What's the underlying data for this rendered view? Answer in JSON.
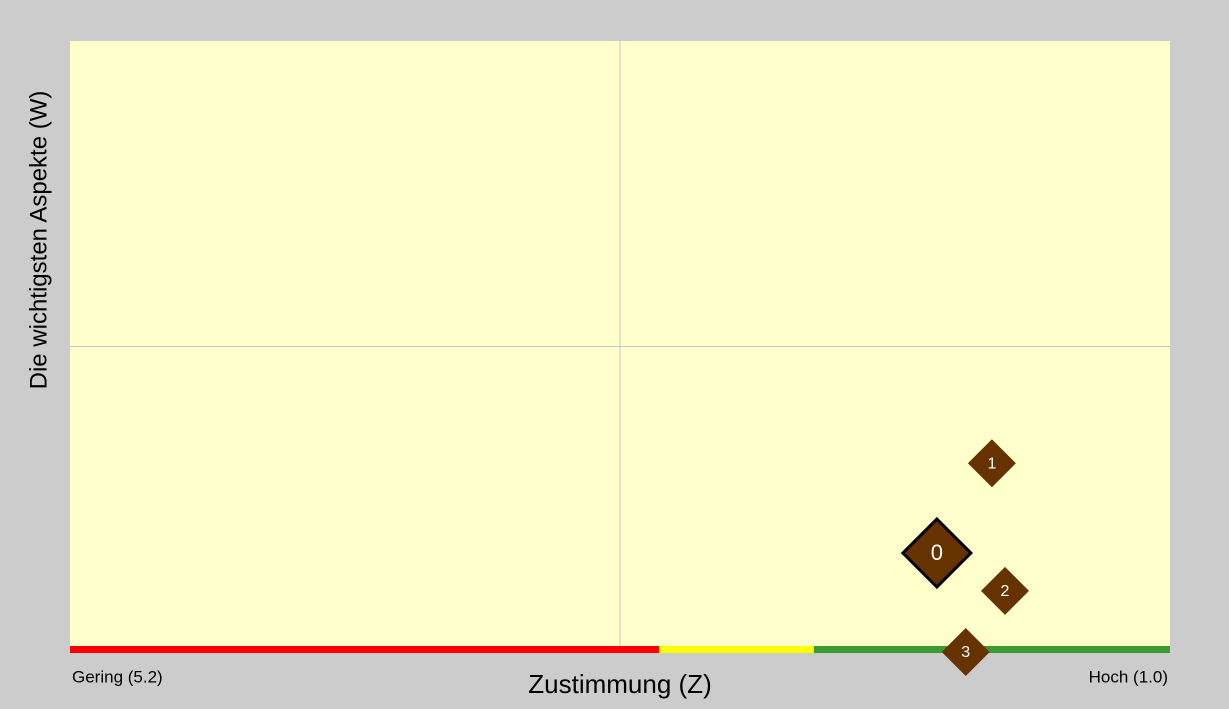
{
  "chart_data": {
    "type": "scatter",
    "x_label": "Zustimmung (Z)",
    "y_label": "Die wichtigsten Aspekte (W)",
    "x_min_label": "Gering (5.2)",
    "x_max_label": "Hoch (1.0)",
    "labels": [
      "0",
      "1",
      "2",
      "3"
    ],
    "x": [
      1.89,
      1.68,
      1.63,
      1.78
    ],
    "values": [
      16.2,
      30.9,
      10.0,
      0
    ],
    "highlight": 0,
    "color": "#663300",
    "xlim": [
      5.2,
      1.0
    ],
    "ylim": [
      0,
      100
    ],
    "x_gridlines": [
      3.1
    ],
    "y_gridlines": [
      50
    ],
    "color_bands": [
      {
        "from": 5.2,
        "to": 2.95,
        "color": "#ff0000"
      },
      {
        "from": 2.95,
        "to": 2.36,
        "color": "#ffff00"
      },
      {
        "from": 2.36,
        "to": 1.0,
        "color": "#3c9a32"
      }
    ]
  }
}
